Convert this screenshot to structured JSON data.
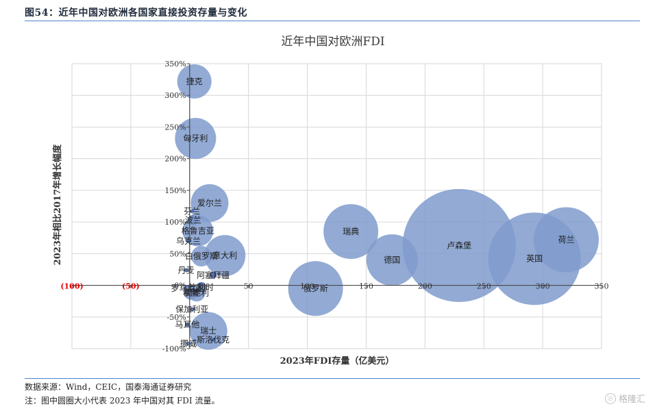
{
  "figure": {
    "title": "图54：近年中国对欧洲各国家直接投资存量与变化",
    "source_note": "数据来源：Wind，CEIC，国泰海通证券研究",
    "size_note": "注：图中圆圈大小代表 2023 年中国对其 FDI 流量。",
    "watermark": "格隆汇",
    "watermark_icon": "globe-icon"
  },
  "colors": {
    "bubble": "#7f9bcc",
    "bubble_alt": "#3f63b0",
    "axis": "#4a4a4a",
    "grid": "#d6d6d6",
    "negative_label": "#e00000",
    "rule": "#4a86c8"
  },
  "chart_data": {
    "type": "scatter",
    "title": "近年中国对欧洲FDI",
    "xlabel": "2023年FDI存量（亿美元）",
    "ylabel": "2023年相比2017年增长幅度",
    "xlim": [
      -100,
      350
    ],
    "ylim": [
      -100,
      350
    ],
    "x_ticks": [
      -100,
      -50,
      0,
      50,
      100,
      150,
      200,
      250,
      300,
      350
    ],
    "x_tick_labels": [
      "(100)",
      "(50)",
      "",
      "50",
      "100",
      "150",
      "200",
      "250",
      "300",
      "350"
    ],
    "y_ticks": [
      -100,
      -50,
      0,
      50,
      100,
      150,
      200,
      250,
      300,
      350
    ],
    "y_tick_labels": [
      "-100%",
      "-50%",
      "0%",
      "50%",
      "100%",
      "150%",
      "200%",
      "250%",
      "300%",
      "350%"
    ],
    "grid": true,
    "size_meaning": "2023年中国对其FDI流量",
    "points": [
      {
        "label": "捷克",
        "x": 4,
        "y": 322,
        "size": 1.0
      },
      {
        "label": "匈牙利",
        "x": 5,
        "y": 232,
        "size": 1.2
      },
      {
        "label": "爱尔兰",
        "x": 17,
        "y": 130,
        "size": 1.1
      },
      {
        "label": "芬兰",
        "x": 2,
        "y": 117,
        "size": 0.1
      },
      {
        "label": "波兰",
        "x": 3,
        "y": 103,
        "size": 0.3
      },
      {
        "label": "格鲁吉亚",
        "x": 7,
        "y": 86,
        "size": 0.9
      },
      {
        "label": "乌克兰",
        "x": -1,
        "y": 70,
        "size": 0.1
      },
      {
        "label": "意大利",
        "x": 30,
        "y": 47,
        "size": 1.2
      },
      {
        "label": "白俄罗斯",
        "x": 10,
        "y": 46,
        "size": 0.6
      },
      {
        "label": "丹麦",
        "x": -3,
        "y": 24,
        "size": 0.1
      },
      {
        "label": "阿塞拜疆",
        "x": 20,
        "y": 16,
        "size": 0.2
      },
      {
        "label": "比利时",
        "x": 10,
        "y": -3,
        "size": 0.3
      },
      {
        "label": "罗马尼亚",
        "x": -2,
        "y": -5,
        "size": 0.2
      },
      {
        "label": "奥地利",
        "x": 6,
        "y": -12,
        "size": 0.5
      },
      {
        "label": "希腊",
        "x": 1,
        "y": -12,
        "size": 0.4
      },
      {
        "label": "保加利亚",
        "x": 2,
        "y": -38,
        "size": 0.1
      },
      {
        "label": "马耳他",
        "x": -2,
        "y": -62,
        "size": 0.1
      },
      {
        "label": "瑞士",
        "x": 16,
        "y": -72,
        "size": 1.1
      },
      {
        "label": "斯洛伐克",
        "x": 20,
        "y": -86,
        "size": 0.1
      },
      {
        "label": "挪威",
        "x": -1,
        "y": -92,
        "size": 0.1
      },
      {
        "label": "俄罗斯",
        "x": 107,
        "y": -5,
        "size": 1.6
      },
      {
        "label": "瑞典",
        "x": 137,
        "y": 85,
        "size": 1.6
      },
      {
        "label": "德国",
        "x": 172,
        "y": 40,
        "size": 1.5
      },
      {
        "label": "卢森堡",
        "x": 229,
        "y": 63,
        "size": 3.3
      },
      {
        "label": "英国",
        "x": 293,
        "y": 42,
        "size": 2.7
      },
      {
        "label": "荷兰",
        "x": 320,
        "y": 72,
        "size": 1.9
      }
    ]
  }
}
